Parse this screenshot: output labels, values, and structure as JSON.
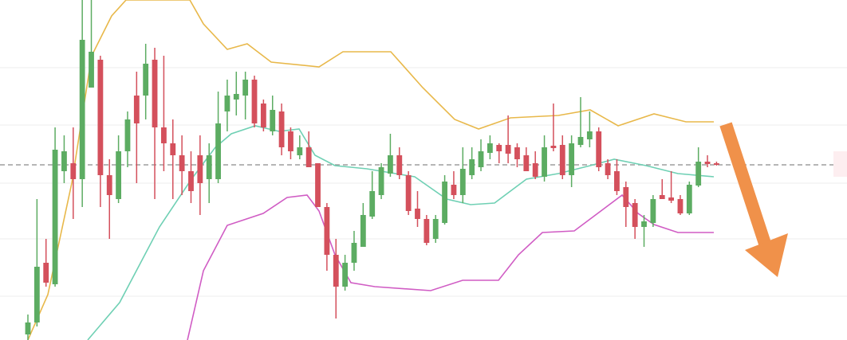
{
  "chart_data": {
    "type": "candlestick",
    "xlim": [
      -3.08,
      90.4
    ],
    "ylim": [
      0,
      427
    ],
    "gridlines": [
      342,
      270,
      197,
      127,
      55
    ],
    "grid_color": "#eeeeee",
    "up_color": "#5cac62",
    "down_color": "#d4505c",
    "open": [
      7,
      22,
      97,
      70,
      212,
      222,
      202,
      317,
      352,
      207,
      177,
      237,
      307,
      307,
      352,
      267,
      247,
      232,
      212,
      232,
      202,
      202,
      287,
      302,
      307,
      327,
      297,
      262,
      287,
      262,
      232,
      242,
      222,
      167,
      107,
      67,
      97,
      117,
      155,
      182,
      209,
      232,
      207,
      165,
      152,
      127,
      147,
      195,
      182,
      207,
      217,
      235,
      245,
      245,
      242,
      232,
      222,
      205,
      244,
      245,
      207,
      245,
      252,
      262,
      222,
      212,
      192,
      172,
      142,
      147,
      182,
      179,
      177,
      159,
      194,
      224,
      222
    ],
    "high": [
      32,
      177,
      127,
      267,
      257,
      267,
      427,
      427,
      357,
      227,
      257,
      287,
      337,
      372,
      367,
      357,
      277,
      257,
      237,
      257,
      247,
      312,
      327,
      337,
      337,
      332,
      302,
      307,
      297,
      267,
      257,
      262,
      222,
      172,
      127,
      107,
      137,
      172,
      212,
      222,
      259,
      242,
      212,
      187,
      157,
      157,
      207,
      212,
      242,
      242,
      252,
      257,
      247,
      282,
      247,
      242,
      237,
      257,
      297,
      257,
      257,
      305,
      287,
      267,
      227,
      227,
      199,
      177,
      157,
      182,
      202,
      212,
      182,
      199,
      242,
      232,
      224
    ],
    "low": [
      0,
      17,
      67,
      67,
      197,
      152,
      167,
      317,
      167,
      127,
      172,
      217,
      197,
      277,
      177,
      212,
      177,
      182,
      172,
      157,
      172,
      197,
      262,
      282,
      277,
      267,
      262,
      257,
      232,
      227,
      227,
      217,
      167,
      87,
      27,
      62,
      87,
      117,
      152,
      177,
      205,
      202,
      157,
      142,
      119,
      122,
      145,
      177,
      172,
      202,
      212,
      227,
      222,
      222,
      217,
      212,
      202,
      199,
      237,
      202,
      192,
      242,
      242,
      212,
      202,
      182,
      142,
      127,
      117,
      142,
      177,
      172,
      157,
      157,
      192,
      217,
      219
    ],
    "close": [
      22,
      92,
      72,
      239,
      237,
      202,
      377,
      362,
      207,
      182,
      237,
      277,
      272,
      347,
      267,
      247,
      232,
      212,
      187,
      197,
      232,
      272,
      307,
      309,
      327,
      272,
      267,
      289,
      242,
      237,
      242,
      217,
      167,
      107,
      67,
      97,
      122,
      157,
      187,
      217,
      232,
      207,
      162,
      152,
      122,
      152,
      199,
      182,
      215,
      227,
      237,
      247,
      237,
      234,
      227,
      212,
      205,
      242,
      241,
      207,
      247,
      255,
      262,
      217,
      207,
      187,
      167,
      142,
      149,
      177,
      177,
      175,
      159,
      195,
      224,
      221,
      220
    ],
    "lines": [
      {
        "color": "#e8b84a",
        "x": [
          0,
          2.2,
          4.84,
          7.04,
          9.24,
          10.83,
          17.87,
          19.37,
          22.0,
          24.2,
          26.85,
          32.13,
          34.77,
          40.05,
          43.57,
          47.1,
          49.74,
          53.26,
          58.54,
          62.06,
          65.14,
          69.1,
          72.62,
          75.7
        ],
        "values": [
          0,
          57,
          197,
          357,
          407,
          427,
          427,
          397,
          365,
          372,
          349,
          343,
          362,
          362,
          317,
          277,
          265,
          279,
          282,
          289,
          269,
          284,
          274,
          274
        ]
      },
      {
        "color": "#6fd0b4",
        "x": [
          6.6,
          10.12,
          14.52,
          18.05,
          20.69,
          22.45,
          25.09,
          27.73,
          29.93,
          31.69,
          33.89,
          37.41,
          42.69,
          46.21,
          48.86,
          51.5,
          55.02,
          58.54,
          62.06,
          64.7,
          68.22,
          71.74,
          75.7
        ],
        "values": [
          0,
          47,
          142,
          202,
          242,
          259,
          269,
          262,
          265,
          232,
          219,
          215,
          205,
          177,
          170,
          172,
          202,
          209,
          219,
          227,
          219,
          209,
          205
        ]
      },
      {
        "color": "#d05cc4",
        "x": [
          17.61,
          19.37,
          22.0,
          25.97,
          28.61,
          30.81,
          32.13,
          33.89,
          35.65,
          38.29,
          44.45,
          47.98,
          51.94,
          54.14,
          56.78,
          60.3,
          63.82,
          65.58,
          67.34,
          69.1,
          71.74,
          75.7
        ],
        "values": [
          0,
          87,
          144,
          159,
          179,
          182,
          162,
          107,
          72,
          67,
          62,
          75,
          75,
          107,
          135,
          137,
          167,
          182,
          159,
          145,
          135,
          135
        ]
      }
    ],
    "price_line": {
      "value": 220,
      "color": "#9e9e9e"
    }
  }
}
